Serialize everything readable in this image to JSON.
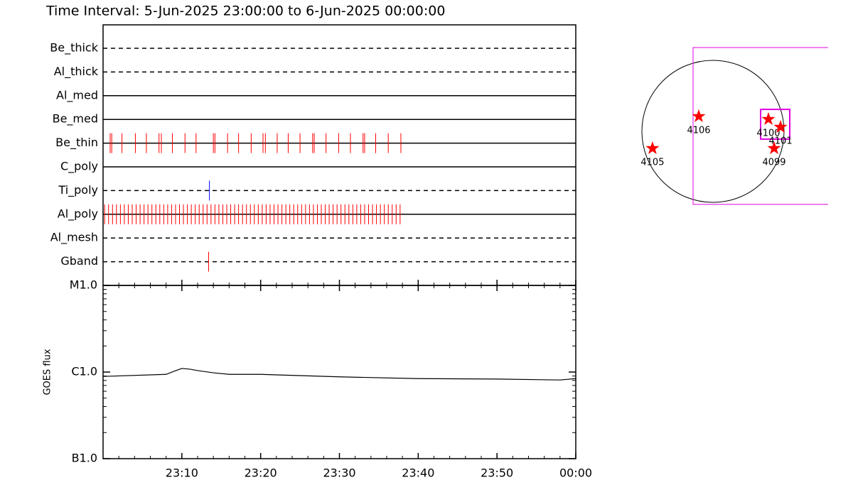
{
  "chart_data": [
    {
      "type": "timeline",
      "title": "Time Interval:  5-Jun-2025 23:00:00 to  6-Jun-2025 00:00:00",
      "xlim": [
        0,
        60
      ],
      "series": [
        {
          "name": "Be_thick",
          "line": "dashed",
          "color": "red",
          "events": []
        },
        {
          "name": "Al_thick",
          "line": "dashed",
          "color": "red",
          "events": []
        },
        {
          "name": "Al_med",
          "line": "solid",
          "color": "red",
          "events": []
        },
        {
          "name": "Be_med",
          "line": "solid",
          "color": "red",
          "events": []
        },
        {
          "name": "Be_thin",
          "line": "solid",
          "color": "red",
          "events": [
            0.9,
            1.1,
            2.4,
            4.1,
            5.5,
            7.1,
            7.4,
            8.8,
            10.4,
            11.8,
            14.0,
            14.2,
            15.8,
            17.2,
            18.8,
            20.3,
            20.6,
            22.1,
            23.5,
            25.0,
            26.6,
            26.8,
            28.3,
            29.9,
            31.4,
            33.0,
            33.2,
            34.6,
            36.2,
            37.8
          ]
        },
        {
          "name": "C_poly",
          "line": "solid",
          "color": "red",
          "events": []
        },
        {
          "name": "Ti_poly",
          "line": "dashed",
          "color": "blue",
          "events": [
            13.5
          ]
        },
        {
          "name": "Al_poly",
          "line": "solid",
          "color": "red",
          "events": [
            0.2,
            0.7,
            1.2,
            1.7,
            2.2,
            2.7,
            3.2,
            3.7,
            4.2,
            4.7,
            5.2,
            5.7,
            6.2,
            6.7,
            7.2,
            7.7,
            8.2,
            8.7,
            9.2,
            9.7,
            10.2,
            10.7,
            11.2,
            11.7,
            12.2,
            12.7,
            13.2,
            13.7,
            14.2,
            14.7,
            15.2,
            15.7,
            16.2,
            16.7,
            17.2,
            17.7,
            18.2,
            18.7,
            19.2,
            19.7,
            20.2,
            20.7,
            21.2,
            21.7,
            22.2,
            22.7,
            23.2,
            23.7,
            24.2,
            24.7,
            25.2,
            25.7,
            26.2,
            26.7,
            27.2,
            27.7,
            28.2,
            28.7,
            29.2,
            29.7,
            30.2,
            30.7,
            31.2,
            31.7,
            32.2,
            32.7,
            33.2,
            33.7,
            34.2,
            34.7,
            35.2,
            35.7,
            36.2,
            36.7,
            37.2,
            37.7
          ]
        },
        {
          "name": "Al_mesh",
          "line": "dashed",
          "color": "red",
          "events": []
        },
        {
          "name": "Gband",
          "line": "dashed",
          "color": "red",
          "events": [
            13.4
          ]
        }
      ]
    },
    {
      "type": "line",
      "ylabel": "GOES flux",
      "log_y": true,
      "color": "#000000",
      "xlim": [
        0,
        60
      ],
      "xticks": [
        {
          "value": 10,
          "label": "23:10"
        },
        {
          "value": 20,
          "label": "23:20"
        },
        {
          "value": 30,
          "label": "23:30"
        },
        {
          "value": 40,
          "label": "23:40"
        },
        {
          "value": 50,
          "label": "23:50"
        },
        {
          "value": 60,
          "label": "00:00"
        }
      ],
      "ylim": [
        1e-07,
        1e-05
      ],
      "yticks": [
        {
          "value": 1e-07,
          "label": "B1.0"
        },
        {
          "value": 1e-06,
          "label": "C1.0"
        },
        {
          "value": 1e-05,
          "label": "M1.0"
        }
      ],
      "x": [
        0,
        8,
        9,
        10,
        11,
        12,
        14,
        16,
        20,
        25,
        30,
        40,
        50,
        58,
        60
      ],
      "values": [
        8.9e-07,
        9.4e-07,
        1.02e-06,
        1.1e-06,
        1.08e-06,
        1.04e-06,
        9.8e-07,
        9.4e-07,
        9.4e-07,
        9.1e-07,
        8.8e-07,
        8.4e-07,
        8.3e-07,
        8.1e-07,
        8.4e-07
      ]
    },
    {
      "type": "map",
      "regions": [
        {
          "label": "4106",
          "x": -190,
          "y": 200
        },
        {
          "label": "4105",
          "x": -808,
          "y": -228
        },
        {
          "label": "4100",
          "x": 741,
          "y": 162
        },
        {
          "label": "4101",
          "x": 903,
          "y": 57
        },
        {
          "label": "4099",
          "x": 817,
          "y": -228
        }
      ],
      "boxes": [
        {
          "x": [
            -266,
            1800
          ],
          "y": [
            -977,
            1121
          ]
        },
        {
          "x": [
            637,
            1026
          ],
          "y": [
            -104,
            294
          ]
        }
      ],
      "box_color": "#e000e0",
      "marker_color": "red"
    }
  ]
}
